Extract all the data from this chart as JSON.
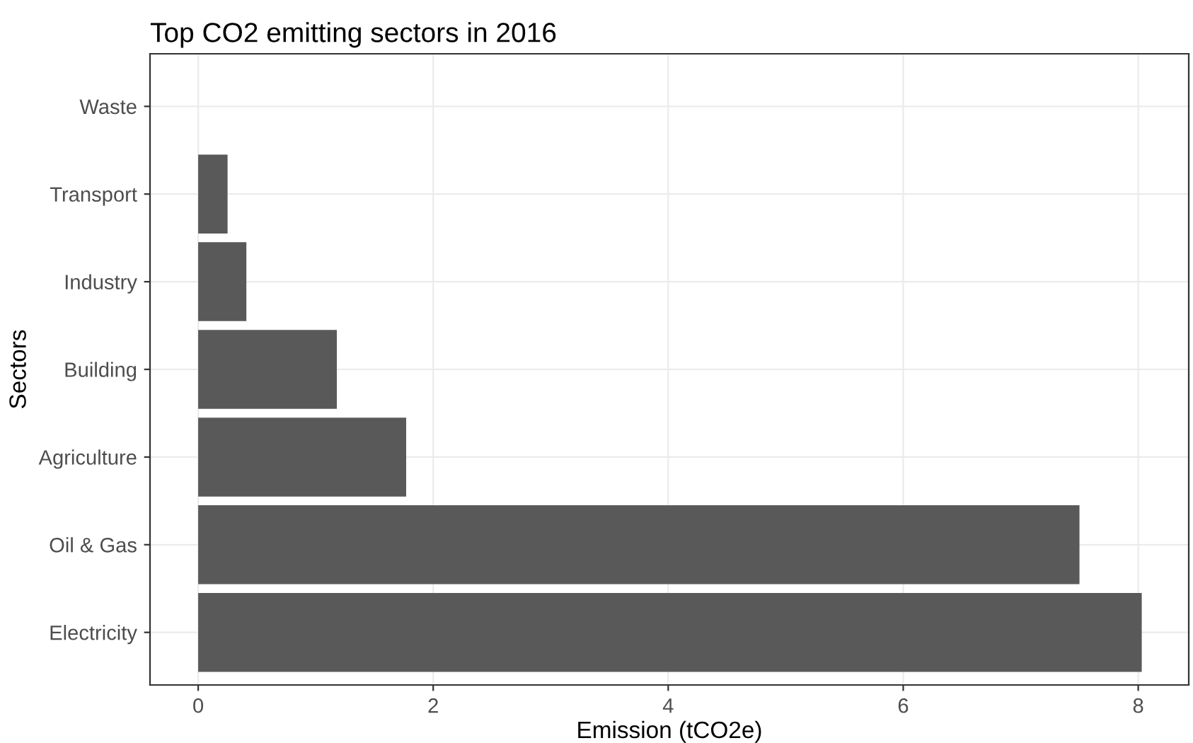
{
  "chart_data": {
    "type": "bar",
    "orientation": "horizontal",
    "title": "Top CO2 emitting sectors in 2016",
    "xlabel": "Emission (tCO2e)",
    "ylabel": "Sectors",
    "categories": [
      "Waste",
      "Transport",
      "Industry",
      "Building",
      "Agriculture",
      "Oil & Gas",
      "Electricity"
    ],
    "values": [
      0,
      0.25,
      0.41,
      1.18,
      1.77,
      7.5,
      8.03
    ],
    "color": "#595959",
    "xlim": [
      -0.41,
      8.43
    ],
    "xticks": [
      0,
      2,
      4,
      6,
      8
    ],
    "grid": true
  }
}
